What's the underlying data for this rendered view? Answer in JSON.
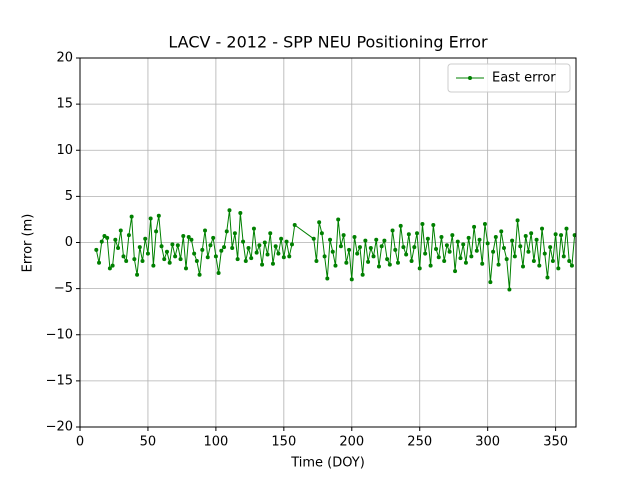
{
  "chart_data": {
    "type": "line",
    "title": "LACV - 2012 - SPP NEU Positioning Error",
    "x_label": "Time (DOY)",
    "y_label": "Error (m)",
    "x": [
      12,
      14,
      16,
      18,
      20,
      22,
      24,
      26,
      28,
      30,
      32,
      34,
      36,
      38,
      40,
      42,
      44,
      46,
      48,
      50,
      52,
      54,
      56,
      58,
      60,
      62,
      64,
      66,
      68,
      70,
      72,
      74,
      76,
      78,
      80,
      82,
      84,
      86,
      88,
      90,
      92,
      94,
      96,
      98,
      100,
      102,
      104,
      106,
      108,
      110,
      112,
      114,
      116,
      118,
      120,
      122,
      124,
      126,
      128,
      130,
      132,
      134,
      136,
      138,
      140,
      142,
      144,
      146,
      148,
      150,
      152,
      154,
      156,
      158,
      172,
      174,
      176,
      178,
      180,
      182,
      184,
      186,
      188,
      190,
      192,
      194,
      196,
      198,
      200,
      202,
      204,
      206,
      208,
      210,
      212,
      214,
      216,
      218,
      220,
      222,
      224,
      226,
      228,
      230,
      232,
      234,
      236,
      238,
      240,
      242,
      244,
      246,
      248,
      250,
      252,
      254,
      256,
      258,
      260,
      262,
      264,
      266,
      268,
      270,
      272,
      274,
      276,
      278,
      280,
      282,
      284,
      286,
      288,
      290,
      292,
      294,
      296,
      298,
      300,
      302,
      304,
      306,
      308,
      310,
      312,
      314,
      316,
      318,
      320,
      322,
      324,
      326,
      328,
      330,
      332,
      334,
      336,
      338,
      340,
      342,
      344,
      346,
      348,
      350,
      352,
      354,
      356,
      358,
      360,
      362,
      364
    ],
    "series": [
      {
        "name": "East error",
        "color": "#008000",
        "values": [
          -0.8,
          -2.2,
          0.1,
          0.7,
          0.5,
          -2.8,
          -2.5,
          0.3,
          -0.6,
          1.3,
          -1.5,
          -2.0,
          0.8,
          2.8,
          -1.8,
          -3.5,
          -0.5,
          -2.0,
          0.4,
          -1.2,
          2.6,
          -2.5,
          1.2,
          2.9,
          -0.4,
          -1.8,
          -1.0,
          -2.2,
          -0.2,
          -1.5,
          -0.3,
          -1.8,
          0.7,
          -2.8,
          0.6,
          0.3,
          -1.2,
          -2.0,
          -3.5,
          -0.8,
          1.3,
          -1.6,
          -0.3,
          0.5,
          -1.5,
          -3.3,
          -0.9,
          -0.5,
          1.2,
          3.5,
          -0.6,
          1.0,
          -1.8,
          3.2,
          0.1,
          -2.0,
          -0.6,
          -1.7,
          1.5,
          -1.1,
          -0.3,
          -2.4,
          0.0,
          -1.3,
          1.0,
          -2.3,
          -0.4,
          -1.2,
          0.4,
          -1.6,
          0.1,
          -1.5,
          -0.2,
          1.9,
          0.4,
          -2.0,
          2.2,
          1.0,
          -1.5,
          -3.9,
          0.3,
          -1.0,
          -2.5,
          2.5,
          -0.4,
          0.8,
          -2.2,
          -0.8,
          -4.0,
          0.6,
          -1.2,
          -0.5,
          -3.5,
          0.2,
          -2.1,
          -0.6,
          -1.5,
          0.3,
          -2.6,
          -0.4,
          0.2,
          -1.8,
          -2.4,
          1.3,
          -0.8,
          -2.2,
          1.8,
          -0.5,
          -1.3,
          0.9,
          -2.0,
          -0.5,
          1.0,
          -2.8,
          2.0,
          -1.2,
          0.4,
          -2.5,
          1.9,
          -0.7,
          -1.6,
          0.6,
          -2.0,
          -0.3,
          -1.0,
          0.8,
          -3.1,
          0.1,
          -1.7,
          -0.2,
          -2.2,
          0.5,
          -1.5,
          1.7,
          -0.9,
          0.3,
          -2.3,
          2.0,
          -0.1,
          -4.3,
          -1.0,
          0.6,
          -2.4,
          1.2,
          -0.6,
          -1.8,
          -5.1,
          0.2,
          -1.5,
          2.4,
          -0.4,
          -2.6,
          0.7,
          -1.0,
          1.0,
          -2.0,
          0.3,
          -2.5,
          1.5,
          -1.2,
          -3.8,
          -0.5,
          -2.0,
          0.9,
          -2.8,
          0.8,
          -1.5,
          1.5,
          -2.0,
          -2.5,
          0.8
        ]
      }
    ],
    "xlim": [
      0,
      365
    ],
    "ylim": [
      -20,
      20
    ],
    "xticks": [
      0,
      50,
      100,
      150,
      200,
      250,
      300,
      350
    ],
    "yticks": [
      {
        "value": -20,
        "label": "−20"
      },
      {
        "value": -15,
        "label": "−15"
      },
      {
        "value": -10,
        "label": "−10"
      },
      {
        "value": -5,
        "label": "−5"
      },
      0,
      5,
      10,
      15,
      20
    ],
    "grid": true,
    "legend": "upper right"
  }
}
